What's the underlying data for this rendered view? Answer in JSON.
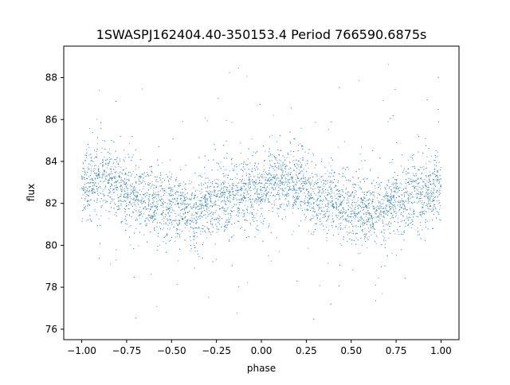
{
  "chart_data": {
    "type": "scatter",
    "title": "1SWASPJ162404.40-350153.4 Period 766590.6875s",
    "xlabel": "phase",
    "ylabel": "flux",
    "xlim": [
      -1.1,
      1.1
    ],
    "ylim": [
      75.5,
      89.5
    ],
    "x_ticks": [
      -1.0,
      -0.75,
      -0.5,
      -0.25,
      0.0,
      0.25,
      0.5,
      0.75,
      1.0
    ],
    "x_tick_labels": [
      "−1.00",
      "−0.75",
      "−0.50",
      "−0.25",
      "0.00",
      "0.25",
      "0.50",
      "0.75",
      "1.00"
    ],
    "y_ticks": [
      76,
      78,
      80,
      82,
      84,
      86,
      88
    ],
    "y_tick_labels": [
      "76",
      "78",
      "80",
      "82",
      "84",
      "86",
      "88"
    ],
    "grid": false,
    "legend": "none",
    "marker_color": "#1f77b4",
    "x_range": [
      -1.0,
      1.0
    ],
    "profile": {
      "phase": [
        0.0,
        0.05,
        0.1,
        0.15,
        0.2,
        0.25,
        0.3,
        0.35,
        0.4,
        0.45,
        0.5,
        0.55,
        0.6,
        0.65,
        0.7,
        0.75,
        0.8,
        0.85,
        0.9,
        0.95,
        1.0
      ],
      "median_flux": [
        82.7,
        83.0,
        83.0,
        83.0,
        82.9,
        82.6,
        82.3,
        82.2,
        82.1,
        81.9,
        81.9,
        81.7,
        81.6,
        81.5,
        81.8,
        82.2,
        82.3,
        82.3,
        82.4,
        82.6,
        82.7
      ],
      "scatter": 0.8
    }
  }
}
